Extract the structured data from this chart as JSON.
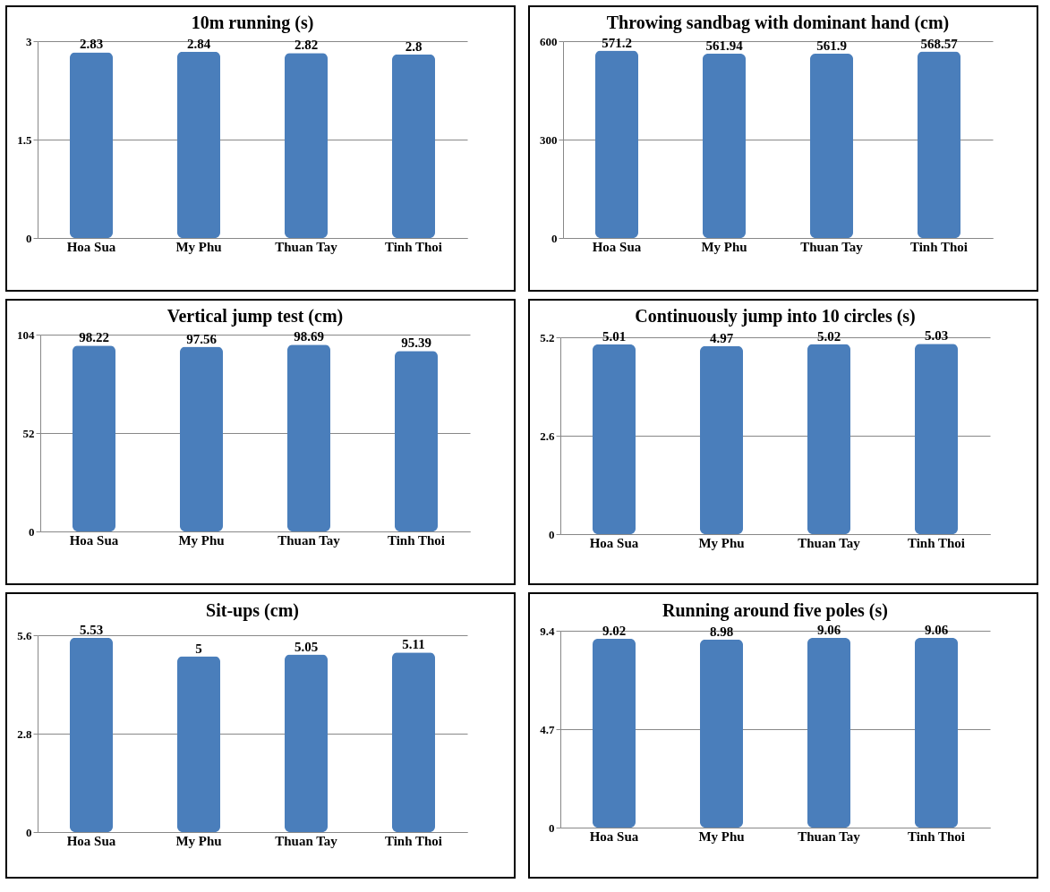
{
  "chart_data": [
    {
      "type": "bar",
      "title": "10m running (s)",
      "categories": [
        "Hoa Sua",
        "My Phu",
        "Thuan Tay",
        "Tinh Thoi"
      ],
      "values": [
        2.83,
        2.84,
        2.82,
        2.8
      ],
      "color": "#4a7ebb",
      "ylim": [
        0,
        3
      ],
      "yticks": [
        0,
        1.5,
        3
      ],
      "grid": "y",
      "data_labels": true
    },
    {
      "type": "bar",
      "title": "Throwing sandbag with dominant hand (cm)",
      "categories": [
        "Hoa Sua",
        "My Phu",
        "Thuan Tay",
        "Tinh Thoi"
      ],
      "values": [
        571.2,
        561.94,
        561.9,
        568.57
      ],
      "color": "#4a7ebb",
      "ylim": [
        0,
        600
      ],
      "yticks": [
        0,
        300,
        600
      ],
      "grid": "y",
      "data_labels": true
    },
    {
      "type": "bar",
      "title": "Vertical jump test (cm)",
      "categories": [
        "Hoa Sua",
        "My Phu",
        "Thuan Tay",
        "Tinh Thoi"
      ],
      "values": [
        98.22,
        97.56,
        98.69,
        95.39
      ],
      "color": "#4a7ebb",
      "ylim": [
        0,
        104
      ],
      "yticks": [
        0,
        52,
        104
      ],
      "grid": "y",
      "data_labels": true
    },
    {
      "type": "bar",
      "title": "Continuously jump into 10 circles (s)",
      "categories": [
        "Hoa Sua",
        "My Phu",
        "Thuan Tay",
        "Tinh Thoi"
      ],
      "values": [
        5.01,
        4.97,
        5.02,
        5.03
      ],
      "color": "#4a7ebb",
      "ylim": [
        0,
        5.2
      ],
      "yticks": [
        0,
        2.6,
        5.2
      ],
      "grid": "y",
      "data_labels": true
    },
    {
      "type": "bar",
      "title": "Sit-ups (cm)",
      "categories": [
        "Hoa Sua",
        "My Phu",
        "Thuan Tay",
        "Tinh Thoi"
      ],
      "values": [
        5.53,
        5,
        5.05,
        5.11
      ],
      "color": "#4a7ebb",
      "ylim": [
        0,
        5.6
      ],
      "yticks": [
        0,
        2.8,
        5.6
      ],
      "grid": "y",
      "data_labels": true
    },
    {
      "type": "bar",
      "title": "Running around five poles (s)",
      "categories": [
        "Hoa Sua",
        "My Phu",
        "Thuan Tay",
        "Tinh Thoi"
      ],
      "values": [
        9.02,
        8.98,
        9.06,
        9.06
      ],
      "color": "#4a7ebb",
      "ylim": [
        0,
        9.4
      ],
      "yticks": [
        0,
        4.7,
        9.4
      ],
      "grid": "y",
      "data_labels": true
    }
  ]
}
